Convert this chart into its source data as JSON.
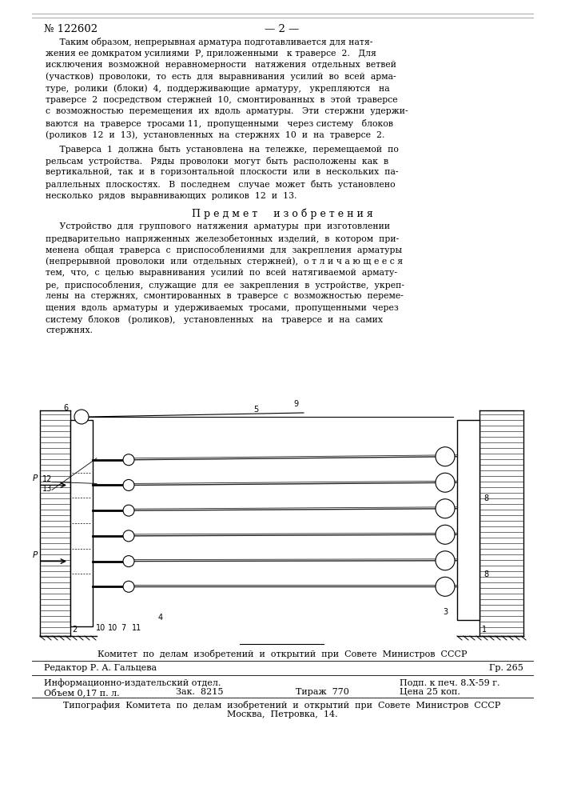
{
  "patent_number": "№ 122602",
  "page_number": "— 2 —",
  "bg_color": "#ffffff",
  "text_color": "#000000",
  "body_text_1": "     Таким образом, непрерывная арматура подготавливается для натя-\nжения ее домкратом усилиями  Р, приложенными   к траверсе  2.   Для\nисключения  возможной  неравномерности   натяжения  отдельных  ветвей\n(участков)  проволоки,  то  есть  для  выравнивания  усилий  во  всей  арма-\nтуре,  ролики  (блоки)  4,  поддерживающие  арматуру,   укрепляются   на\nтраверсе  2  посредством  стержней  10,  смонтированных  в  этой  траверсе\nс  возможностью  перемещения  их  вдоль  арматуры.   Эти  стержни  удержи-\nваются  на  траверсе  тросами 11,  пропущенными   через систему   блоков\n(роликов  12  и  13),  установленных  на  стержнях  10  и  на  траверсе  2.",
  "body_text_2": "     Траверса  1  должна  быть  установлена  на  тележке,  перемещаемой  по\nрельсам  устройства.   Ряды  проволоки  могут  быть  расположены  как  в\nвертикальной,  так  и  в  горизонтальной  плоскости  или  в  нескольких  па-\nраллельных  плоскостях.   В  последнем   случае  может  быть  установлено\nнесколько  рядов  выравнивающих  роликов  12  и  13.",
  "section_title": "П р е д м е т     и з о б р е т е н и я",
  "claim_text": "     Устройство  для  группового  натяжения  арматуры  при  изготовлении\nпредварительно  напряженных  железобетонных  изделий,  в  котором  при-\nменена  общая  траверса  с  приспособлениями  для  закрепления  арматуры\n(непрерывной  проволоки  или  отдельных  стержней),  о т л и ч а ю щ е е с я\nтем,  что,  с  целью  выравнивания  усилий  по  всей  натягиваемой  армату-\nре,  приспособления,  служащие  для  ее  закрепления  в  устройстве,  укреп-\nлены  на  стержнях,  смонтированных  в  траверсе  с  возможностью  переме-\nщения  вдоль  арматуры  и  удерживаемых  тросами,  пропущенными  через\nсистему  блоков   (роликов),   установленных   на   траверсе  и  на  самих\nстержнях.",
  "footer_committee": "Комитет  по  делам  изобретений  и  открытий  при  Совете  Министров  СССР",
  "footer_editor": "Редактор Р. А. Гальцева",
  "footer_gr": "Гр. 265",
  "footer_info_dept": "Информационно-издательский отдел.",
  "footer_podp": "Подп. к печ. 8.Х-59 г.",
  "footer_volume": "Объем 0,17 п. л.",
  "footer_order": "Зак.  8215",
  "footer_circulation": "Тираж  770",
  "footer_price": "Цена 25 коп.",
  "footer_typography": "Типография  Комитета  по  делам  изобретений  и  открытий  при  Совете  Министров  СССР",
  "footer_address": "Москва,  Петровка,  14."
}
